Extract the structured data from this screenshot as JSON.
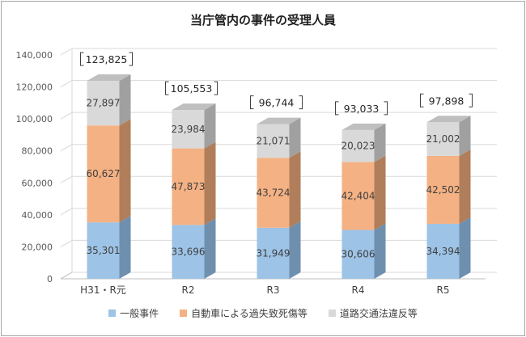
{
  "chart_data": {
    "type": "bar",
    "stacked": true,
    "title": "当庁管内の事件の受理人員",
    "categories": [
      "H31・R元",
      "R2",
      "R3",
      "R4",
      "R5"
    ],
    "series": [
      {
        "name": "一般事件",
        "color": "#9dc3e6",
        "side_color": "#6f8fae",
        "values": [
          35301,
          33696,
          31949,
          30606,
          34394
        ],
        "labels": [
          "35,301",
          "33,696",
          "31,949",
          "30,606",
          "34,394"
        ]
      },
      {
        "name": "自動車による過失致死傷等",
        "color": "#f4b183",
        "side_color": "#b07e5a",
        "values": [
          60627,
          47873,
          43724,
          42404,
          42502
        ],
        "labels": [
          "60,627",
          "47,873",
          "43,724",
          "42,404",
          "42,502"
        ]
      },
      {
        "name": "道路交通法違反等",
        "color": "#d9d9d9",
        "side_color": "#a0a0a0",
        "values": [
          27897,
          23984,
          21071,
          20023,
          21002
        ],
        "labels": [
          "27,897",
          "23,984",
          "21,071",
          "20,023",
          "21,002"
        ]
      }
    ],
    "totals": [
      "123,825",
      "105,553",
      "96,744",
      "93,033",
      "97,898"
    ],
    "y_ticks": [
      "0",
      "20,000",
      "40,000",
      "60,000",
      "80,000",
      "100,000",
      "120,000",
      "140,000"
    ],
    "ylim": [
      0,
      140000
    ],
    "grid": true,
    "legend_position": "bottom"
  }
}
